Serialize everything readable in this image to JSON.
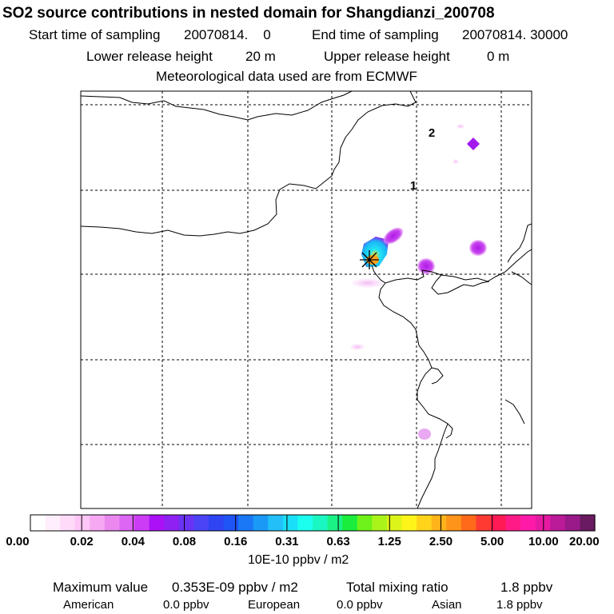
{
  "title": "SO2 source contributions in nested domain for Shangdianzi_200708",
  "header": {
    "start_label": "Start time of sampling",
    "start_value": "20070814.    0",
    "end_label": "End time of sampling",
    "end_value": "20070814. 30000",
    "lower_label": "Lower release height",
    "lower_value": "20 m",
    "upper_label": "Upper release height",
    "upper_value": "0 m",
    "met": "Meteorological data used are from ECMWF"
  },
  "map": {
    "markers": [
      {
        "label": "2"
      },
      {
        "label": "1"
      }
    ]
  },
  "colorbar": {
    "ticks": [
      "0.00",
      "0.02",
      "0.04",
      "0.08",
      "0.16",
      "0.31",
      "0.63",
      "1.25",
      "2.50",
      "5.00",
      "10.00",
      "20.00"
    ],
    "unit": "10E-10 ppbv / m2",
    "colors": [
      "#ffffff",
      "#ffeefc",
      "#ffdaf9",
      "#fdc6f6",
      "#f7a8f2",
      "#ea88f0",
      "#de66f4",
      "#cc3cf6",
      "#aa11f6",
      "#8f22f2",
      "#6a33f4",
      "#4a44f6",
      "#2f44f2",
      "#1f55f6",
      "#1a78f6",
      "#1a9af6",
      "#22bff8",
      "#1adff8",
      "#1affee",
      "#1af7c2",
      "#1af286",
      "#1aed3c",
      "#6ef21a",
      "#aaf41a",
      "#ddf41a",
      "#fff41a",
      "#ffd41a",
      "#ffb41a",
      "#ff941a",
      "#ff6a1a",
      "#ff3a33",
      "#ff1a55",
      "#ff1a88",
      "#ff1aaa",
      "#e61aa2",
      "#bb1a99",
      "#991a88",
      "#6a1a60"
    ]
  },
  "stats": {
    "max_label": "Maximum value",
    "max_value": "0.353E-09 ppbv / m2",
    "total_label": "Total mixing ratio",
    "total_value": "1.8 ppbv",
    "american_label": "American",
    "american_value": "0.0 ppbv",
    "european_label": "European",
    "european_value": "0.0 ppbv",
    "asian_label": "Asian",
    "asian_value": "1.8 ppbv"
  }
}
